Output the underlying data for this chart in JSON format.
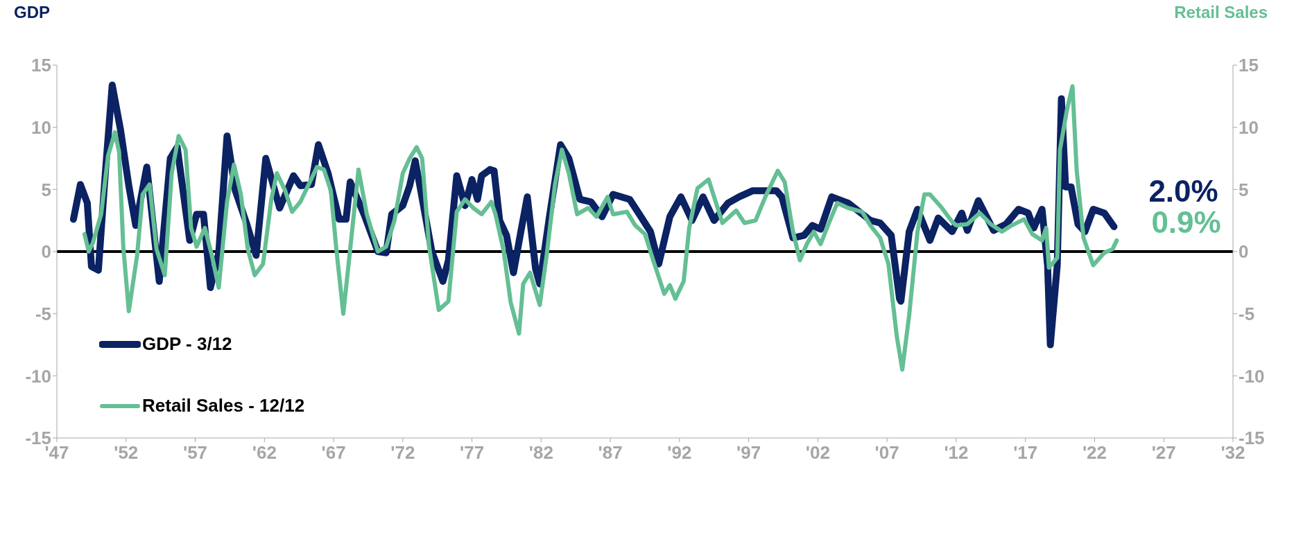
{
  "chart_data": {
    "type": "line",
    "ylabel": "GDP",
    "y2label": "Retail Sales",
    "xlim": [
      1947,
      2032
    ],
    "xticks": [
      {
        "value": 1947,
        "label": "'47"
      },
      {
        "value": 1952,
        "label": "'52"
      },
      {
        "value": 1957,
        "label": "'57"
      },
      {
        "value": 1962,
        "label": "'62"
      },
      {
        "value": 1967,
        "label": "'67"
      },
      {
        "value": 1972,
        "label": "'72"
      },
      {
        "value": 1977,
        "label": "'77"
      },
      {
        "value": 1982,
        "label": "'82"
      },
      {
        "value": 1987,
        "label": "'87"
      },
      {
        "value": 1992,
        "label": "'92"
      },
      {
        "value": 1997,
        "label": "'97"
      },
      {
        "value": 2002,
        "label": "'02"
      },
      {
        "value": 2007,
        "label": "'07"
      },
      {
        "value": 2012,
        "label": "'12"
      },
      {
        "value": 2017,
        "label": "'17"
      },
      {
        "value": 2022,
        "label": "'22"
      },
      {
        "value": 2027,
        "label": "'27"
      },
      {
        "value": 2032,
        "label": "'32"
      }
    ],
    "ylim": [
      -15,
      15
    ],
    "yticks": [
      -15,
      -10,
      -5,
      0,
      5,
      10,
      15
    ],
    "y2lim": [
      -15,
      15
    ],
    "y2ticks": [
      -15,
      -10,
      -5,
      0,
      5,
      10,
      15
    ],
    "grid": false,
    "legend": "bottom left",
    "marker": "none",
    "line_style": "solid",
    "ref_lines": [
      {
        "axis": "y",
        "value": 0,
        "color": "#000000"
      }
    ],
    "series": [
      {
        "name": "GDP - 3/12",
        "color": "#0b2263",
        "x": [
          1948.2,
          1948.7,
          1949.2,
          1949.5,
          1950.0,
          1950.5,
          1951.0,
          1951.6,
          1952.2,
          1952.7,
          1953.5,
          1954.4,
          1955.2,
          1955.7,
          1956.6,
          1957.1,
          1957.6,
          1958.1,
          1958.7,
          1959.3,
          1959.9,
          1960.7,
          1961.4,
          1962.1,
          1963.1,
          1964.1,
          1964.6,
          1965.4,
          1965.9,
          1966.6,
          1967.4,
          1967.9,
          1968.2,
          1969.2,
          1970.2,
          1970.8,
          1971.2,
          1972.0,
          1972.5,
          1972.9,
          1973.3,
          1974.1,
          1974.9,
          1975.3,
          1975.9,
          1976.5,
          1977.0,
          1977.4,
          1977.7,
          1978.3,
          1978.6,
          1979.0,
          1979.5,
          1980.0,
          1980.5,
          1981.0,
          1981.6,
          1981.9,
          1982.6,
          1983.4,
          1984.0,
          1984.8,
          1985.6,
          1986.4,
          1987.2,
          1988.4,
          1989.1,
          1989.9,
          1990.5,
          1991.3,
          1992.1,
          1992.9,
          1993.7,
          1994.5,
          1995.5,
          1996.3,
          1997.3,
          1997.8,
          1999.0,
          1999.4,
          2000.2,
          2001.0,
          2001.6,
          2002.2,
          2003.0,
          2004.2,
          2005.0,
          2005.8,
          2006.5,
          2007.3,
          2007.9,
          2008.0,
          2008.6,
          2009.2,
          2010.1,
          2010.7,
          2011.7,
          2012.4,
          2012.8,
          2013.6,
          2014.7,
          2015.6,
          2016.5,
          2017.2,
          2017.6,
          2018.2,
          2018.6,
          2018.8,
          2019.3,
          2019.6,
          2019.9,
          2020.3,
          2020.8,
          2021.3,
          2021.9,
          2022.7,
          2023.4
        ],
        "values": [
          2.6,
          5.4,
          3.9,
          -1.2,
          -1.5,
          6.3,
          13.4,
          9.8,
          5.3,
          2.1,
          6.8,
          -2.4,
          7.5,
          8.4,
          0.9,
          3.0,
          3.0,
          -2.9,
          -0.1,
          9.3,
          4.9,
          2.3,
          -0.3,
          7.5,
          3.5,
          6.1,
          5.3,
          5.4,
          8.6,
          6.3,
          2.6,
          2.6,
          5.6,
          3.0,
          0.0,
          -0.1,
          3.0,
          3.7,
          5.3,
          7.3,
          4.9,
          0.0,
          -2.4,
          -0.7,
          6.1,
          3.7,
          5.8,
          4.2,
          6.1,
          6.6,
          6.5,
          2.5,
          1.3,
          -1.7,
          1.4,
          4.4,
          -1.4,
          -2.6,
          2.8,
          8.6,
          7.5,
          4.2,
          4.0,
          2.8,
          4.6,
          4.2,
          3.0,
          1.6,
          -1.0,
          2.8,
          4.4,
          2.5,
          4.4,
          2.5,
          3.9,
          4.4,
          4.9,
          4.9,
          4.9,
          4.4,
          1.1,
          1.3,
          2.1,
          1.8,
          4.4,
          3.9,
          3.2,
          2.5,
          2.3,
          1.3,
          -3.8,
          -4.0,
          1.6,
          3.4,
          0.9,
          2.7,
          1.6,
          3.1,
          1.7,
          4.1,
          1.7,
          2.2,
          3.4,
          3.1,
          1.9,
          3.4,
          -1.1,
          -7.5,
          -1.1,
          12.3,
          5.2,
          5.2,
          2.2,
          1.6,
          3.4,
          3.1,
          2.0
        ],
        "value_labels": [
          null,
          null,
          null,
          null,
          null,
          null,
          null,
          null,
          null,
          null,
          null,
          null,
          null,
          null,
          null,
          null,
          null,
          null,
          null,
          null,
          null,
          null,
          null,
          null,
          null,
          null,
          null,
          null,
          null,
          null,
          null,
          null,
          null,
          null,
          null,
          null,
          null,
          null,
          null,
          null,
          null,
          null,
          null,
          null,
          null,
          null,
          null,
          null,
          null,
          null,
          null,
          null,
          null,
          null,
          null,
          null,
          null,
          null,
          null,
          null,
          null,
          null,
          null,
          null,
          null,
          null,
          null,
          null,
          null,
          null,
          null,
          null,
          null,
          null,
          null,
          null,
          null,
          null,
          null,
          null,
          null,
          null,
          null,
          null,
          null,
          null,
          null,
          null,
          null,
          null,
          null,
          null,
          null,
          null,
          null,
          null,
          null,
          null,
          null,
          null,
          null,
          null,
          null,
          null,
          null,
          null,
          null,
          null,
          null,
          null,
          null,
          null,
          null,
          null,
          null,
          null,
          "2.0%"
        ]
      },
      {
        "name": "Retail Sales - 12/12",
        "color": "#64bf94",
        "axis": "y2",
        "x": [
          1949.0,
          1949.3,
          1949.6,
          1950.2,
          1950.7,
          1951.2,
          1951.5,
          1951.8,
          1952.2,
          1952.8,
          1953.2,
          1953.7,
          1954.2,
          1954.8,
          1955.3,
          1955.8,
          1956.3,
          1956.7,
          1957.1,
          1957.7,
          1958.2,
          1958.7,
          1959.3,
          1959.8,
          1960.3,
          1960.8,
          1961.3,
          1961.9,
          1962.5,
          1962.9,
          1963.5,
          1964.0,
          1964.6,
          1965.2,
          1965.8,
          1966.3,
          1966.8,
          1967.2,
          1967.7,
          1968.2,
          1968.8,
          1969.4,
          1970.2,
          1970.8,
          1971.4,
          1972.0,
          1972.5,
          1973.0,
          1973.4,
          1973.9,
          1974.6,
          1975.3,
          1975.9,
          1976.5,
          1977.1,
          1977.7,
          1978.4,
          1978.7,
          1979.3,
          1979.8,
          1980.4,
          1980.7,
          1981.2,
          1981.9,
          1982.4,
          1983.0,
          1983.5,
          1984.0,
          1984.6,
          1985.4,
          1986.0,
          1986.8,
          1987.2,
          1988.2,
          1988.8,
          1989.5,
          1990.1,
          1990.9,
          1991.3,
          1991.7,
          1992.3,
          1992.7,
          1993.3,
          1994.1,
          1994.7,
          1995.1,
          1996.1,
          1996.7,
          1997.5,
          1998.2,
          1999.1,
          1999.6,
          2000.2,
          2000.7,
          2001.2,
          2001.7,
          2002.2,
          2002.8,
          2003.4,
          2004.2,
          2005.2,
          2005.8,
          2006.5,
          2007.1,
          2007.7,
          2008.1,
          2008.6,
          2009.2,
          2009.7,
          2010.1,
          2010.9,
          2011.7,
          2012.0,
          2012.8,
          2013.7,
          2014.5,
          2015.3,
          2016.0,
          2016.9,
          2017.5,
          2018.2,
          2018.5,
          2018.7,
          2019.3,
          2019.5,
          2020.0,
          2020.4,
          2020.7,
          2021.2,
          2021.9,
          2022.7,
          2023.3,
          2023.6
        ],
        "values": [
          1.4,
          0.0,
          0.7,
          3.0,
          7.7,
          9.6,
          8.0,
          0.4,
          -4.8,
          -0.3,
          4.6,
          5.4,
          0.2,
          -1.9,
          6.3,
          9.3,
          8.2,
          1.9,
          0.4,
          1.9,
          -0.3,
          -2.9,
          4.0,
          7.0,
          4.6,
          0.2,
          -1.9,
          -1.0,
          4.2,
          6.3,
          4.9,
          3.2,
          4.0,
          5.4,
          6.8,
          6.6,
          4.9,
          0.2,
          -5.0,
          0.2,
          6.6,
          3.0,
          0.0,
          0.4,
          2.5,
          6.3,
          7.5,
          8.4,
          7.5,
          0.4,
          -4.7,
          -4.0,
          3.2,
          4.2,
          3.5,
          3.0,
          4.0,
          3.0,
          0.0,
          -4.1,
          -6.6,
          -2.6,
          -1.7,
          -4.3,
          -0.3,
          5.4,
          8.2,
          6.3,
          3.0,
          3.5,
          2.8,
          4.4,
          3.0,
          3.2,
          2.1,
          1.4,
          -0.7,
          -3.4,
          -2.7,
          -3.8,
          -2.4,
          1.9,
          5.1,
          5.8,
          3.7,
          2.3,
          3.3,
          2.3,
          2.5,
          4.4,
          6.5,
          5.6,
          1.6,
          -0.7,
          0.6,
          1.6,
          0.6,
          2.3,
          3.9,
          3.5,
          3.2,
          2.1,
          1.1,
          -1.0,
          -6.8,
          -9.5,
          -5.1,
          1.6,
          4.6,
          4.6,
          3.6,
          2.4,
          2.1,
          2.2,
          3.1,
          2.2,
          1.6,
          2.1,
          2.6,
          1.4,
          0.9,
          1.9,
          -1.3,
          -0.5,
          8.2,
          11.4,
          13.3,
          6.6,
          1.1,
          -1.1,
          -0.1,
          0.2,
          0.9
        ],
        "value_labels": [
          null,
          null,
          null,
          null,
          null,
          null,
          null,
          null,
          null,
          null,
          null,
          null,
          null,
          null,
          null,
          null,
          null,
          null,
          null,
          null,
          null,
          null,
          null,
          null,
          null,
          null,
          null,
          null,
          null,
          null,
          null,
          null,
          null,
          null,
          null,
          null,
          null,
          null,
          null,
          null,
          null,
          null,
          null,
          null,
          null,
          null,
          null,
          null,
          null,
          null,
          null,
          null,
          null,
          null,
          null,
          null,
          null,
          null,
          null,
          null,
          null,
          null,
          null,
          null,
          null,
          null,
          null,
          null,
          null,
          null,
          null,
          null,
          null,
          null,
          null,
          null,
          null,
          null,
          null,
          null,
          null,
          null,
          null,
          null,
          null,
          null,
          null,
          null,
          null,
          null,
          null,
          null,
          null,
          null,
          null,
          null,
          null,
          null,
          null,
          null,
          null,
          null,
          null,
          null,
          null,
          null,
          null,
          null,
          null,
          null,
          null,
          null,
          null,
          null,
          null,
          null,
          null,
          null,
          null,
          null,
          null,
          null,
          null,
          null,
          null,
          null,
          null,
          null,
          null,
          null,
          null,
          null,
          "0.9%"
        ]
      }
    ]
  }
}
